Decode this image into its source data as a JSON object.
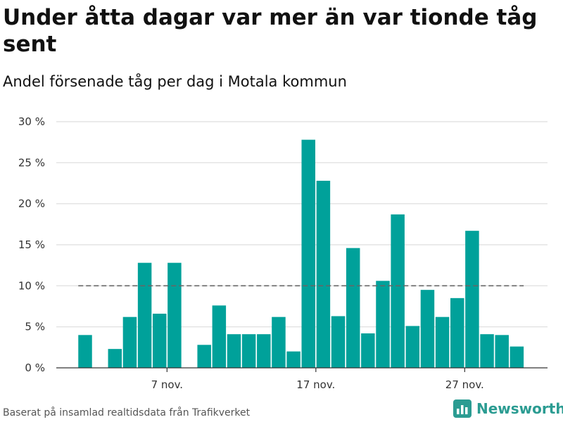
{
  "title": "Under åtta dagar var mer än var tionde tåg sent",
  "subtitle": "Andel försenade tåg per dag i Motala kommun",
  "source": "Baserat på insamlad realtidsdata från Trafikverket",
  "logo": {
    "text": "Newsworthy",
    "icon": "bar-chart-logo-icon",
    "color": "#2b9c92"
  },
  "colors": {
    "bar": "#00a19a",
    "grid": "#dddddd",
    "axis": "#333333",
    "reference": "#666666"
  },
  "chart_data": {
    "type": "bar",
    "ylim": [
      0,
      30
    ],
    "yticks": [
      0,
      5,
      10,
      15,
      20,
      25,
      30
    ],
    "ytick_labels": [
      "0 %",
      "5 %",
      "10 %",
      "15 %",
      "20 %",
      "25 %",
      "30 %"
    ],
    "xtick_labels": [
      {
        "index": 6,
        "label": "7 nov."
      },
      {
        "index": 16,
        "label": "17 nov."
      },
      {
        "index": 26,
        "label": "27 nov."
      }
    ],
    "reference_value": 10,
    "values": [
      4.0,
      null,
      2.3,
      6.2,
      12.8,
      6.6,
      12.8,
      null,
      2.8,
      7.6,
      4.1,
      4.1,
      4.1,
      6.2,
      2.0,
      27.8,
      22.8,
      6.3,
      14.6,
      4.2,
      10.6,
      18.7,
      5.1,
      9.5,
      6.2,
      8.5,
      16.7,
      4.1,
      4.0,
      2.6
    ]
  }
}
